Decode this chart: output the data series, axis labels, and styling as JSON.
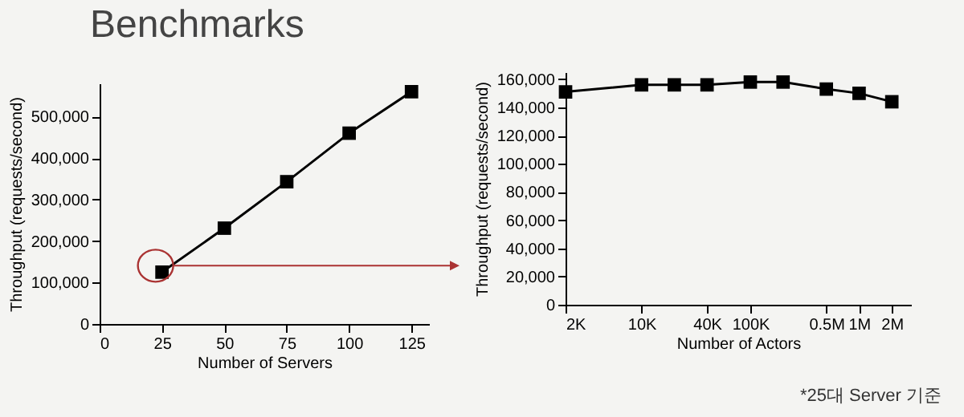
{
  "chart_data": [
    {
      "type": "line",
      "title": "Benchmarks",
      "xlabel": "Number of Servers",
      "ylabel": "Throughput (requests/second)",
      "x": [
        25,
        50,
        75,
        100,
        125
      ],
      "series": [
        {
          "color": "#000000",
          "values": [
            125000,
            231000,
            343000,
            460000,
            560000
          ]
        }
      ],
      "xlim": [
        0,
        132
      ],
      "xticks": [
        0,
        25,
        50,
        75,
        100,
        125
      ],
      "ylim": [
        0,
        580000
      ],
      "yticks": [
        0,
        {
          "value": 100000,
          "label": "100,000"
        },
        {
          "value": 200000,
          "label": "200,000"
        },
        {
          "value": 300000,
          "label": "300,000"
        },
        {
          "value": 400000,
          "label": "400,000"
        },
        {
          "value": 500000,
          "label": "500,000"
        }
      ],
      "marker": "square",
      "grid": false,
      "legend": false
    },
    {
      "type": "line",
      "xlabel": "Number of Actors",
      "ylabel": "Throughput (requests/second)",
      "x": [
        2000,
        10000,
        20000,
        40000,
        100000,
        200000,
        500000,
        1000000,
        2000000
      ],
      "series": [
        {
          "color": "#000000",
          "values": [
            151000,
            156000,
            156000,
            156000,
            158000,
            158000,
            153000,
            150000,
            144000
          ]
        }
      ],
      "log": "x",
      "xlim": [
        2000,
        3000000
      ],
      "xticks": [
        {
          "value": 2000,
          "label": "2K"
        },
        {
          "value": 10000,
          "label": "10K"
        },
        {
          "value": 40000,
          "label": "40K"
        },
        {
          "value": 100000,
          "label": "100K"
        },
        {
          "value": 500000,
          "label": "0.5M"
        },
        {
          "value": 1000000,
          "label": "1M"
        },
        {
          "value": 2000000,
          "label": "2M"
        }
      ],
      "ylim": [
        0,
        165000
      ],
      "yticks": [
        0,
        {
          "value": 20000,
          "label": "20,000"
        },
        {
          "value": 40000,
          "label": "40,000"
        },
        {
          "value": 60000,
          "label": "60,000"
        },
        {
          "value": 80000,
          "label": "80,000"
        },
        {
          "value": 100000,
          "label": "100,000"
        },
        {
          "value": 120000,
          "label": "120,000"
        },
        {
          "value": 140000,
          "label": "140,000"
        },
        {
          "value": 160000,
          "label": "160,000"
        }
      ],
      "marker": "square",
      "grid": false,
      "legend": false,
      "annotations": [
        "*25대 Server 기준"
      ]
    }
  ]
}
